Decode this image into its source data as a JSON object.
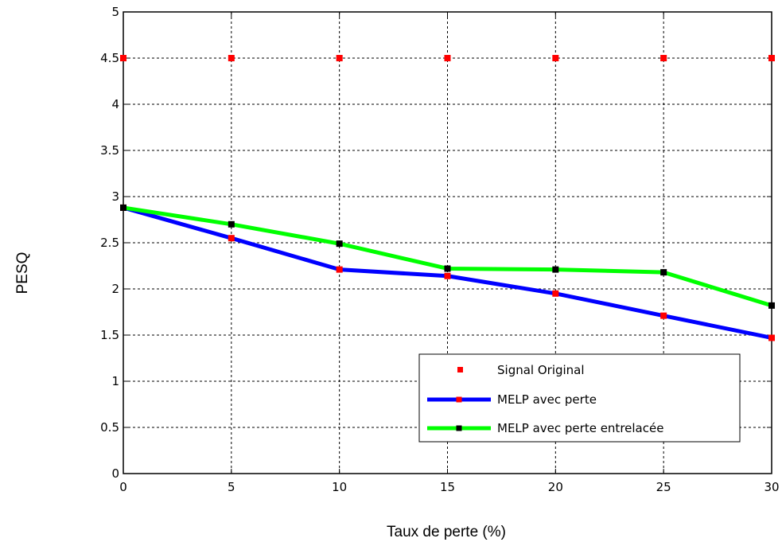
{
  "chart_data": {
    "type": "line",
    "title": "",
    "xlabel": "Taux de perte (%)",
    "ylabel": "PESQ",
    "x": [
      0,
      5,
      10,
      15,
      20,
      25,
      30
    ],
    "xlim": [
      0,
      30
    ],
    "ylim": [
      0,
      5
    ],
    "xticks": [
      "0",
      "5",
      "10",
      "15",
      "20",
      "25",
      "30"
    ],
    "yticks": [
      "0",
      "0.5",
      "1",
      "1.5",
      "2",
      "2.5",
      "3",
      "3.5",
      "4",
      "4.5",
      "5"
    ],
    "grid": true,
    "legend_position": "bottom-right",
    "series": [
      {
        "name": "Signal Original",
        "style": "markers",
        "line_color": "#ff0000",
        "marker_color": "#ff0000",
        "values": [
          4.5,
          4.5,
          4.5,
          4.5,
          4.5,
          4.5,
          4.5
        ]
      },
      {
        "name": "MELP avec perte",
        "style": "line+markers",
        "line_color": "#0000ff",
        "marker_color": "#ff0000",
        "values": [
          2.88,
          2.55,
          2.21,
          2.14,
          1.95,
          1.71,
          1.47
        ]
      },
      {
        "name": "MELP avec perte entrelacée",
        "style": "line+markers",
        "line_color": "#00ff00",
        "marker_color": "#000000",
        "values": [
          2.88,
          2.7,
          2.49,
          2.22,
          2.21,
          2.18,
          1.82
        ]
      }
    ]
  }
}
